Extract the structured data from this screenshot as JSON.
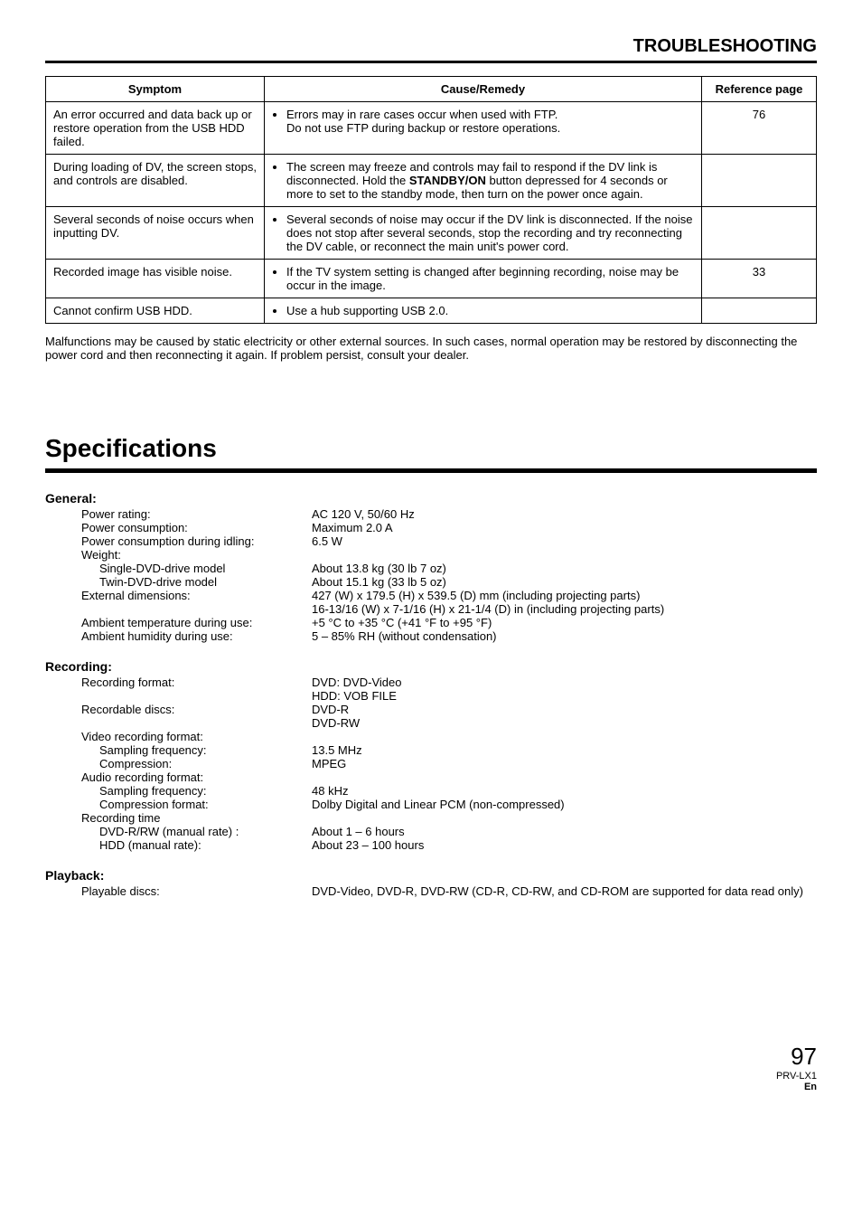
{
  "header": {
    "title": "TROUBLESHOOTING"
  },
  "troubleTable": {
    "headers": {
      "symptom": "Symptom",
      "cause": "Cause/Remedy",
      "ref": "Reference page"
    },
    "rows": [
      {
        "symptom": "An error occurred and data back up or restore operation from the USB HDD failed.",
        "cause_pre": "Errors may in rare cases occur when used with FTP.",
        "cause_post": "Do not use FTP during backup or restore operations.",
        "bold": "",
        "ref": "76"
      }
    ],
    "row2": {
      "symptom": "During loading of DV, the screen stops, and controls are disabled.",
      "pre": "The screen may freeze and controls may fail to respond if the DV link is disconnected. Hold the ",
      "bold": "STANDBY/ON",
      "post": " button depressed for 4 seconds or more to set to the standby mode, then turn on the power once again."
    },
    "row3": {
      "symptom": "Several seconds of noise occurs when inputting DV.",
      "cause": "Several seconds of noise may occur if the DV link is disconnected. If the noise does not stop after several seconds, stop the recording and try reconnecting the DV cable, or reconnect the main unit's power cord."
    },
    "row4": {
      "symptom": "Recorded image has visible noise.",
      "cause": "If the TV system setting is changed after beginning recording, noise may be occur in the image.",
      "ref": "33"
    },
    "row5": {
      "symptom": "Cannot confirm USB HDD.",
      "cause": "Use a hub supporting USB 2.0."
    }
  },
  "caption": "Malfunctions may be caused by static electricity or other external sources. In such cases, normal operation may be restored by disconnecting the power cord and then reconnecting it again. If problem persist, consult your dealer.",
  "specTitle": "Specifications",
  "general": {
    "heading": "General:",
    "power_rating": {
      "l": "Power rating:",
      "v": "AC 120 V, 50/60 Hz"
    },
    "power_cons": {
      "l": "Power consumption:",
      "v": "Maximum 2.0 A"
    },
    "power_idle": {
      "l": "Power consumption during idling:",
      "v": "6.5 W"
    },
    "weight_l": "Weight:",
    "weight_single": {
      "l": "Single-DVD-drive model",
      "v": "About 13.8 kg (30 lb 7 oz)"
    },
    "weight_twin": {
      "l": "Twin-DVD-drive model",
      "v": "About 15.1 kg (33 lb 5 oz)"
    },
    "ext_dim": {
      "l": "External dimensions:",
      "v": "427 (W) x 179.5 (H) x 539.5 (D) mm (including projecting parts)"
    },
    "ext_dim2": "16-13/16 (W) x 7-1/16 (H) x 21-1/4 (D) in (including projecting parts)",
    "amb_temp": {
      "l": "Ambient temperature during use:",
      "v": "+5 °C to +35 °C (+41 °F to +95 °F)"
    },
    "amb_hum": {
      "l": "Ambient humidity during use:",
      "v": "5 – 85% RH (without condensation)"
    }
  },
  "recording": {
    "heading": "Recording:",
    "format": {
      "l": "Recording format:",
      "v": "DVD: DVD-Video"
    },
    "format2": "HDD: VOB FILE",
    "discs": {
      "l": "Recordable discs:",
      "v": "DVD-R"
    },
    "discs2": "DVD-RW",
    "vrec_l": "Video recording format:",
    "vs_freq": {
      "l": "Sampling frequency:",
      "v": "13.5 MHz"
    },
    "vcomp": {
      "l": "Compression:",
      "v": "MPEG"
    },
    "arec_l": "Audio recording format:",
    "as_freq": {
      "l": "Sampling frequency:",
      "v": "48 kHz"
    },
    "acomp": {
      "l": "Compression format:",
      "v": "Dolby Digital and Linear PCM (non-compressed)"
    },
    "rtime_l": "Recording time",
    "rtime_dvd": {
      "l": "DVD-R/RW (manual rate) :",
      "v": "About 1 – 6 hours"
    },
    "rtime_hdd": {
      "l": "HDD (manual rate):",
      "v": "About 23 – 100 hours"
    }
  },
  "playback": {
    "heading": "Playback:",
    "discs": {
      "l": "Playable discs:",
      "v": "DVD-Video, DVD-R, DVD-RW (CD-R, CD-RW, and CD-ROM are supported for data read only)"
    }
  },
  "footer": {
    "page": "97",
    "model": "PRV-LX1",
    "en": "En"
  }
}
